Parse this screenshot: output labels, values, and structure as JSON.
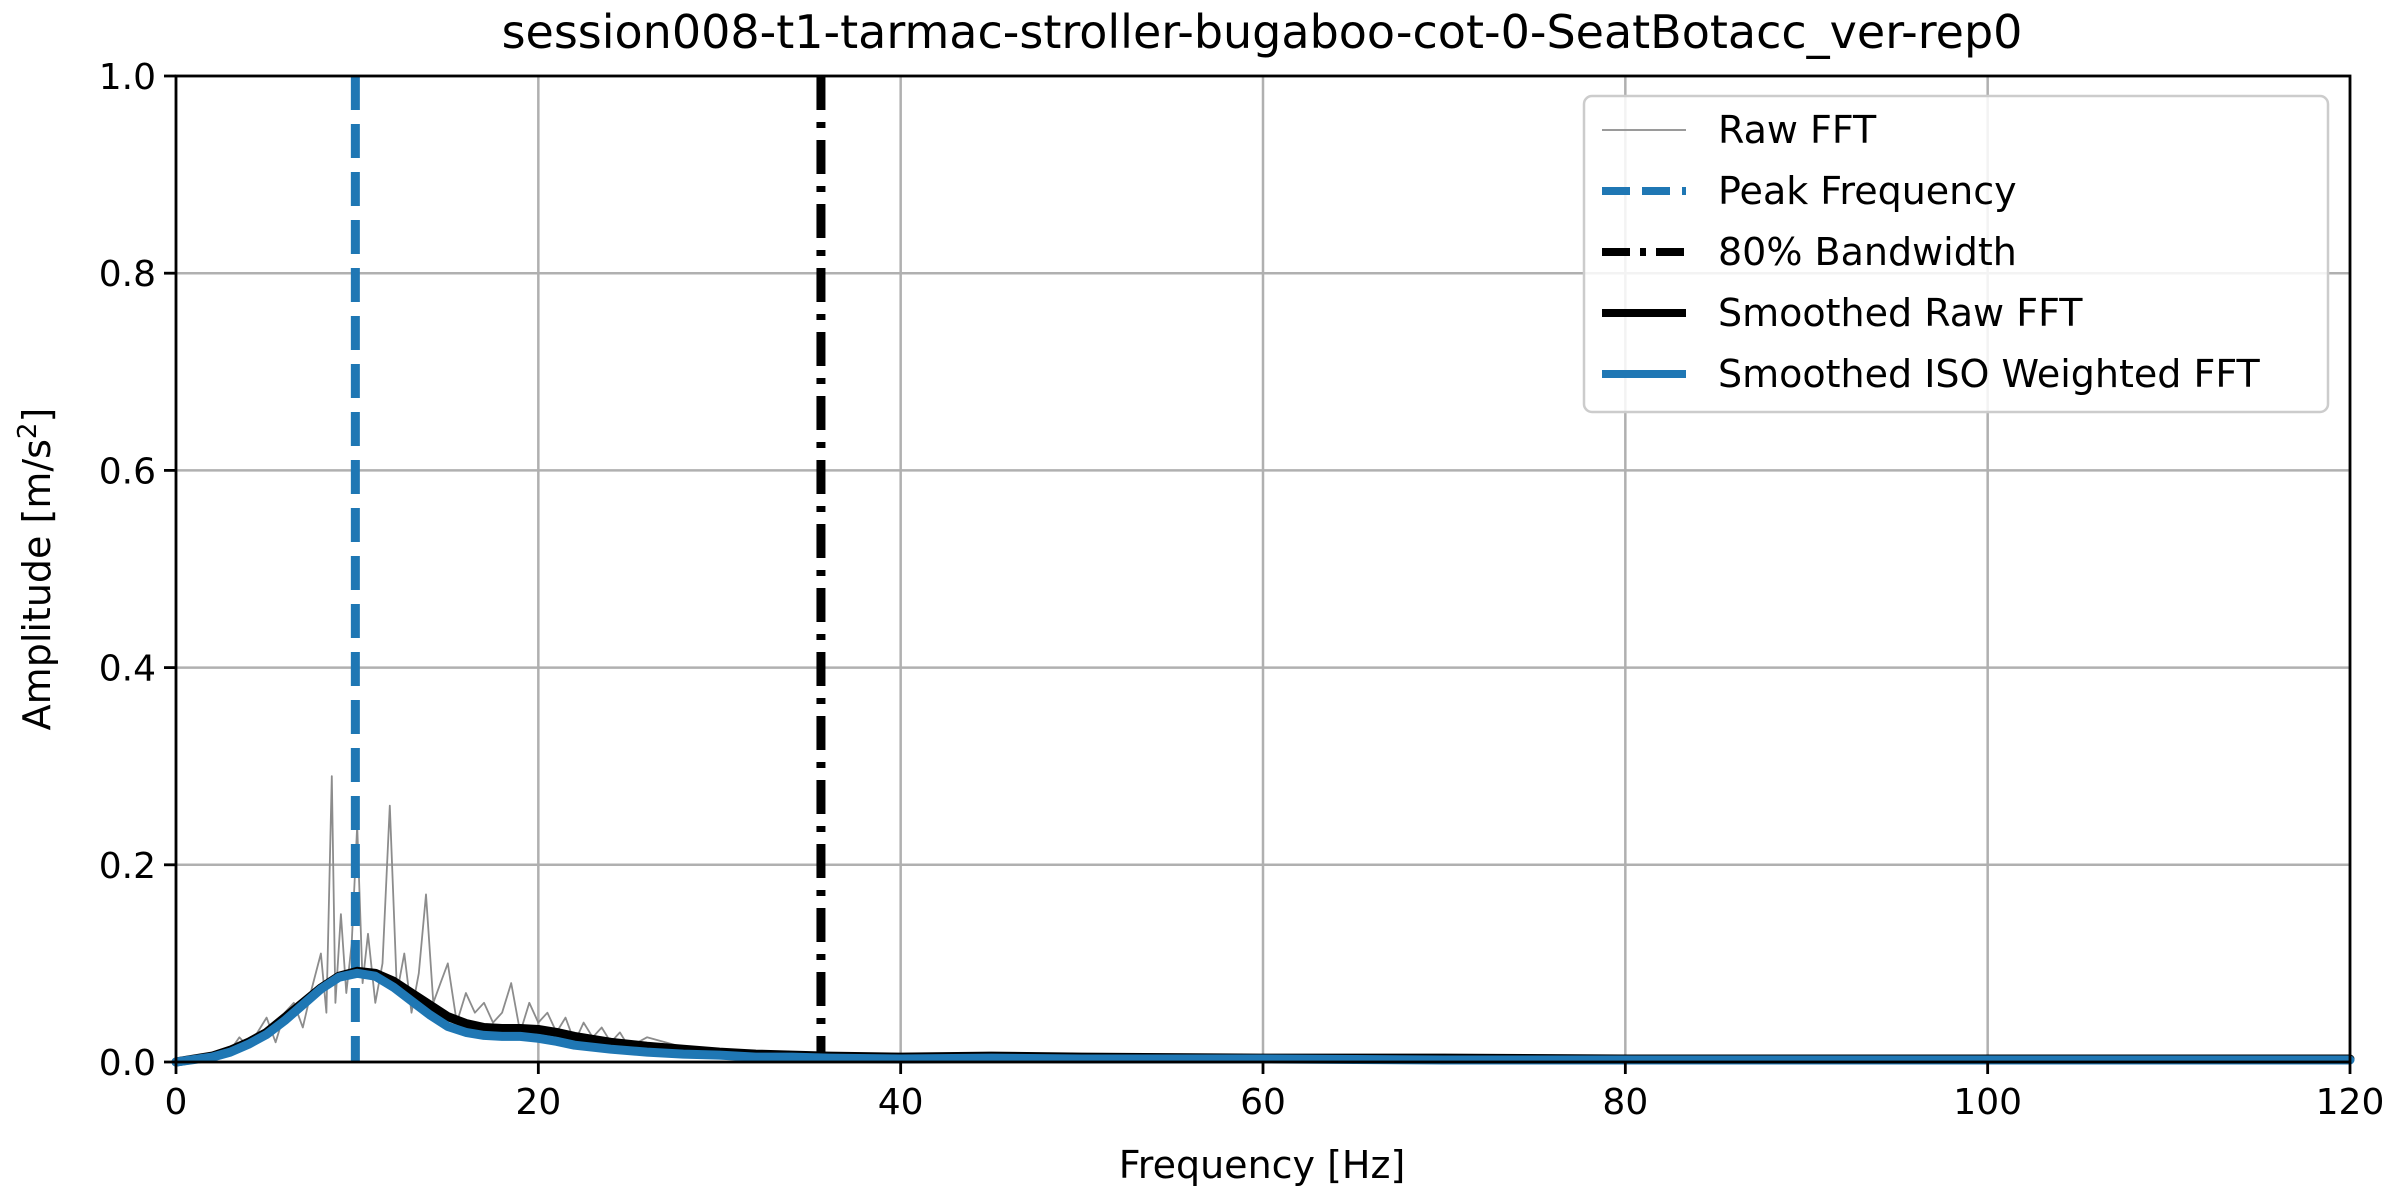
{
  "chart_data": {
    "type": "line",
    "title": "session008-t1-tarmac-stroller-bugaboo-cot-0-SeatBotacc_ver-rep0",
    "xlabel": "Frequency [Hz]",
    "ylabel_main": "Amplitude [m/s",
    "ylabel_sup": "2",
    "ylabel_end": "]",
    "xlim": [
      0,
      120
    ],
    "ylim": [
      0,
      1.0
    ],
    "grid": true,
    "legend_position": "top-right",
    "x_ticks": [
      0,
      20,
      40,
      60,
      80,
      100,
      120
    ],
    "x_tick_labels": [
      "0",
      "20",
      "40",
      "60",
      "80",
      "100",
      "120"
    ],
    "y_ticks": [
      0,
      0.2,
      0.4,
      0.6,
      0.8,
      1.0
    ],
    "y_tick_labels": [
      "0.0",
      "0.2",
      "0.4",
      "0.6",
      "0.8",
      "1.0"
    ],
    "peak_frequency": 9.9,
    "bandwidth_80": 35.6,
    "colors": {
      "raw": "#8c8c8c",
      "peak": "#1f77b4",
      "bandwidth": "#000000",
      "smoothed_raw": "#000000",
      "smoothed_iso": "#1f77b4"
    },
    "series": [
      {
        "name": "Raw FFT",
        "style": "thin",
        "x": [
          0,
          1,
          2,
          3,
          3.5,
          4,
          4.5,
          5,
          5.5,
          6,
          6.5,
          7,
          7.5,
          8,
          8.3,
          8.6,
          8.8,
          9.1,
          9.4,
          9.7,
          10,
          10.3,
          10.6,
          11,
          11.4,
          11.8,
          12.2,
          12.6,
          13,
          13.4,
          13.8,
          14.2,
          14.6,
          15,
          15.5,
          16,
          16.5,
          17,
          17.5,
          18,
          18.5,
          19,
          19.5,
          20,
          20.5,
          21,
          21.5,
          22,
          22.5,
          23,
          23.5,
          24,
          24.5,
          25,
          26,
          27,
          28,
          29,
          30,
          31,
          32,
          33,
          34,
          35,
          36,
          38,
          40,
          42,
          44,
          46,
          48,
          50,
          55,
          60,
          70,
          80,
          90,
          100,
          110,
          120
        ],
        "values": [
          0.0,
          0.004,
          0.008,
          0.012,
          0.025,
          0.015,
          0.03,
          0.045,
          0.02,
          0.05,
          0.06,
          0.035,
          0.075,
          0.11,
          0.05,
          0.29,
          0.06,
          0.15,
          0.07,
          0.12,
          0.24,
          0.08,
          0.13,
          0.06,
          0.1,
          0.26,
          0.07,
          0.11,
          0.05,
          0.09,
          0.17,
          0.06,
          0.08,
          0.1,
          0.04,
          0.07,
          0.05,
          0.06,
          0.04,
          0.05,
          0.08,
          0.03,
          0.06,
          0.04,
          0.05,
          0.03,
          0.045,
          0.02,
          0.04,
          0.025,
          0.035,
          0.02,
          0.03,
          0.015,
          0.025,
          0.02,
          0.015,
          0.012,
          0.01,
          0.012,
          0.008,
          0.01,
          0.007,
          0.006,
          0.005,
          0.005,
          0.004,
          0.004,
          0.005,
          0.006,
          0.004,
          0.004,
          0.003,
          0.003,
          0.003,
          0.003,
          0.002,
          0.002,
          0.002,
          0.002
        ]
      },
      {
        "name": "Smoothed Raw FFT",
        "style": "thick",
        "x": [
          0,
          2,
          3,
          4,
          5,
          6,
          7,
          8,
          9,
          10,
          11,
          12,
          13,
          14,
          15,
          16,
          17,
          18,
          19,
          20,
          21,
          22,
          24,
          26,
          28,
          30,
          32,
          34,
          36,
          40,
          45,
          50,
          60,
          70,
          80,
          90,
          100,
          110,
          120
        ],
        "values": [
          0.0,
          0.006,
          0.012,
          0.02,
          0.03,
          0.045,
          0.06,
          0.075,
          0.087,
          0.092,
          0.09,
          0.082,
          0.07,
          0.058,
          0.046,
          0.039,
          0.035,
          0.034,
          0.034,
          0.033,
          0.03,
          0.026,
          0.02,
          0.016,
          0.013,
          0.01,
          0.008,
          0.007,
          0.006,
          0.005,
          0.006,
          0.005,
          0.004,
          0.004,
          0.003,
          0.003,
          0.003,
          0.003,
          0.003
        ]
      },
      {
        "name": "Smoothed ISO Weighted FFT",
        "style": "thick",
        "x": [
          0,
          2,
          3,
          4,
          5,
          6,
          7,
          8,
          9,
          10,
          11,
          12,
          13,
          14,
          15,
          16,
          17,
          18,
          19,
          20,
          21,
          22,
          24,
          26,
          28,
          30,
          32,
          34,
          36,
          40,
          45,
          50,
          60,
          70,
          80,
          90,
          100,
          110,
          120
        ],
        "values": [
          0.0,
          0.005,
          0.01,
          0.018,
          0.028,
          0.042,
          0.058,
          0.074,
          0.086,
          0.09,
          0.087,
          0.076,
          0.062,
          0.048,
          0.036,
          0.03,
          0.027,
          0.026,
          0.026,
          0.024,
          0.021,
          0.017,
          0.013,
          0.01,
          0.008,
          0.007,
          0.005,
          0.005,
          0.004,
          0.003,
          0.004,
          0.003,
          0.003,
          0.002,
          0.002,
          0.002,
          0.002,
          0.002,
          0.002
        ]
      }
    ],
    "legend": [
      {
        "label": "Raw FFT",
        "key": "raw"
      },
      {
        "label": "Peak Frequency",
        "key": "peak"
      },
      {
        "label": "80% Bandwidth",
        "key": "bandwidth"
      },
      {
        "label": "Smoothed Raw FFT",
        "key": "smoothed_raw"
      },
      {
        "label": "Smoothed ISO Weighted FFT",
        "key": "smoothed_iso"
      }
    ]
  }
}
